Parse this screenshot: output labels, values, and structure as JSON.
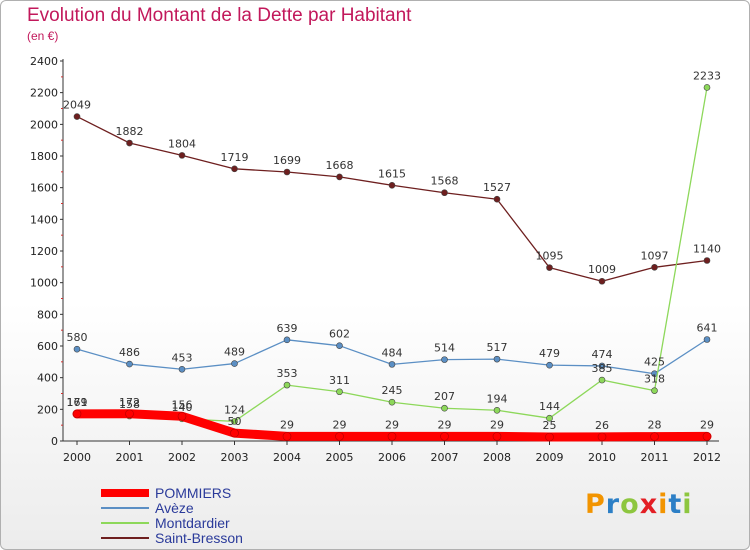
{
  "header": {
    "title": "Evolution du Montant de la Dette par Habitant",
    "subtitle": "(en €)"
  },
  "logo": {
    "letters": [
      "P",
      "r",
      "o",
      "x",
      "i",
      "t",
      "i"
    ],
    "colors": [
      "#f29400",
      "#2c7fc6",
      "#8dc63f",
      "#e31e24",
      "#f29400",
      "#2c7fc6",
      "#8dc63f"
    ]
  },
  "chart_data": {
    "type": "line",
    "title": "Evolution du Montant de la Dette par Habitant",
    "subtitle": "(en €)",
    "x": [
      "2000",
      "2001",
      "2002",
      "2003",
      "2004",
      "2005",
      "2006",
      "2007",
      "2008",
      "2009",
      "2010",
      "2011",
      "2012"
    ],
    "ylim": [
      0,
      2400
    ],
    "yticks": [
      0,
      200,
      400,
      600,
      800,
      1000,
      1200,
      1400,
      1600,
      1800,
      2000,
      2200,
      2400
    ],
    "grid": false,
    "legend_position": "bottom-left",
    "series": [
      {
        "name": "POMMIERS",
        "color": "#ff0000",
        "values": [
          171,
          172,
          156,
          50,
          29,
          29,
          29,
          29,
          29,
          25,
          26,
          28,
          29
        ]
      },
      {
        "name": "Avèze",
        "color": "#5b8fc4",
        "values": [
          580,
          486,
          453,
          489,
          639,
          602,
          484,
          514,
          517,
          479,
          474,
          425,
          641
        ]
      },
      {
        "name": "Montdardier",
        "color": "#8dd85a",
        "values": [
          169,
          158,
          140,
          124,
          353,
          311,
          245,
          207,
          194,
          144,
          385,
          318,
          2233
        ]
      },
      {
        "name": "Saint-Bresson",
        "color": "#6e1f1f",
        "values": [
          2049,
          1882,
          1804,
          1719,
          1699,
          1668,
          1615,
          1568,
          1527,
          1095,
          1009,
          1097,
          1140
        ]
      }
    ]
  }
}
